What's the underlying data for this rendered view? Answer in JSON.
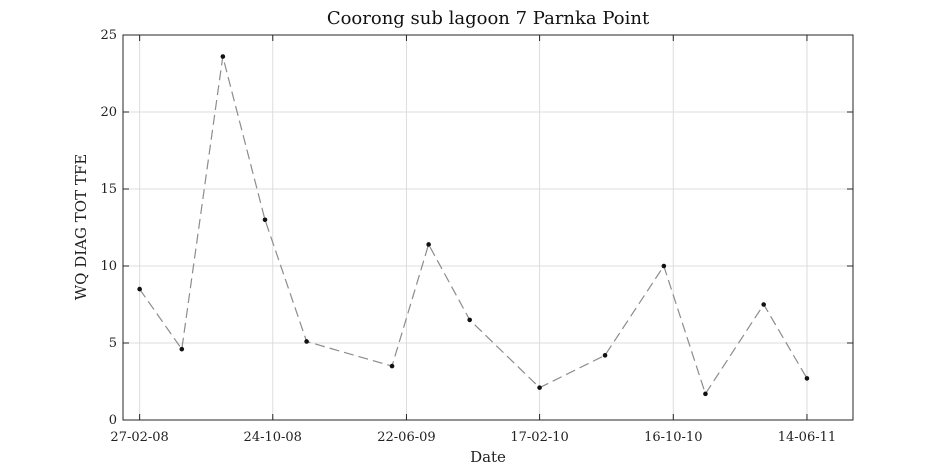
{
  "chart_data": {
    "type": "line",
    "title": "Coorong sub lagoon 7 Parnka Point",
    "xlabel": "Date",
    "ylabel": "WQ DIAG TOT TFE",
    "ylim": [
      0,
      25
    ],
    "yticks": [
      0,
      5,
      10,
      15,
      20,
      25
    ],
    "xlim": [
      "2008-01-28",
      "2011-09-05"
    ],
    "xticks": [
      {
        "date": "2008-02-27",
        "label": "27-02-08"
      },
      {
        "date": "2008-10-24",
        "label": "24-10-08"
      },
      {
        "date": "2009-06-22",
        "label": "22-06-09"
      },
      {
        "date": "2010-02-17",
        "label": "17-02-10"
      },
      {
        "date": "2010-10-16",
        "label": "16-10-10"
      },
      {
        "date": "2011-06-14",
        "label": "14-06-11"
      }
    ],
    "grid": true,
    "series": [
      {
        "x": [
          "2008-02-27",
          "2008-05-13",
          "2008-07-26",
          "2008-10-10",
          "2008-12-24",
          "2009-05-27",
          "2009-08-01",
          "2009-10-14",
          "2010-02-17",
          "2010-06-15",
          "2010-09-29",
          "2010-12-13",
          "2011-03-28",
          "2011-06-14"
        ],
        "y": [
          8.5,
          4.6,
          23.6,
          13.0,
          5.1,
          3.5,
          11.4,
          6.5,
          2.1,
          4.2,
          10.0,
          1.7,
          7.5,
          2.7
        ],
        "color": "#8c8c8c",
        "marker_color": "#111111",
        "line_style": "dashed"
      }
    ]
  }
}
